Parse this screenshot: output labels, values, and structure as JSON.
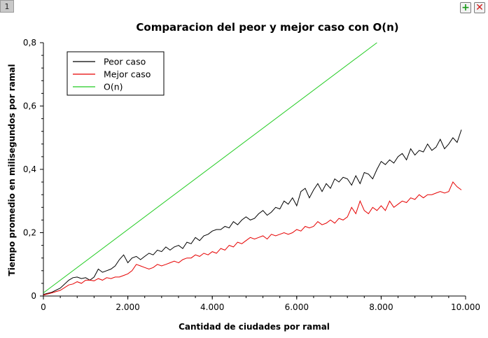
{
  "window": {
    "tab_label": "1",
    "add_icon": "plus-icon",
    "close_icon": "close-icon"
  },
  "chart_data": {
    "type": "line",
    "title": "Comparacion del peor y mejor caso con O(n)",
    "xlabel": "Cantidad de ciudades por ramal",
    "ylabel": "Tiempo promedio en milisegundos por ramal",
    "xlim": [
      0,
      10000
    ],
    "ylim": [
      0,
      0.8
    ],
    "x_ticks": [
      0,
      2000,
      4000,
      6000,
      8000,
      10000
    ],
    "x_tick_labels": [
      "0",
      "2.000",
      "4.000",
      "6.000",
      "8.000",
      "10.000"
    ],
    "y_ticks": [
      0,
      0.2,
      0.4,
      0.6,
      0.8
    ],
    "y_tick_labels": [
      "0",
      "0,2",
      "0,4",
      "0,6",
      "0,8"
    ],
    "legend_position": "top-left",
    "grid": false,
    "series": [
      {
        "name": "Peor caso",
        "color": "#000000",
        "x": [
          0,
          200,
          400,
          600,
          700,
          800,
          900,
          1000,
          1100,
          1200,
          1300,
          1400,
          1500,
          1600,
          1700,
          1800,
          1900,
          2000,
          2100,
          2200,
          2300,
          2400,
          2500,
          2600,
          2700,
          2800,
          2900,
          3000,
          3100,
          3200,
          3300,
          3400,
          3500,
          3600,
          3700,
          3800,
          3900,
          4000,
          4100,
          4200,
          4300,
          4400,
          4500,
          4600,
          4700,
          4800,
          4900,
          5000,
          5100,
          5200,
          5300,
          5400,
          5500,
          5600,
          5700,
          5800,
          5900,
          6000,
          6100,
          6200,
          6300,
          6400,
          6500,
          6600,
          6700,
          6800,
          6900,
          7000,
          7100,
          7200,
          7300,
          7400,
          7500,
          7600,
          7700,
          7800,
          7900,
          8000,
          8100,
          8200,
          8300,
          8400,
          8500,
          8600,
          8700,
          8800,
          8900,
          9000,
          9100,
          9200,
          9300,
          9400,
          9500,
          9600,
          9700,
          9800,
          9900
        ],
        "y": [
          0.005,
          0.012,
          0.025,
          0.05,
          0.058,
          0.06,
          0.055,
          0.058,
          0.05,
          0.06,
          0.085,
          0.075,
          0.08,
          0.085,
          0.095,
          0.115,
          0.13,
          0.105,
          0.12,
          0.125,
          0.115,
          0.125,
          0.135,
          0.13,
          0.145,
          0.14,
          0.155,
          0.145,
          0.155,
          0.16,
          0.15,
          0.17,
          0.165,
          0.185,
          0.175,
          0.19,
          0.195,
          0.205,
          0.21,
          0.21,
          0.22,
          0.215,
          0.235,
          0.225,
          0.24,
          0.25,
          0.24,
          0.245,
          0.26,
          0.27,
          0.255,
          0.265,
          0.28,
          0.275,
          0.3,
          0.29,
          0.31,
          0.285,
          0.33,
          0.34,
          0.31,
          0.335,
          0.355,
          0.33,
          0.355,
          0.34,
          0.37,
          0.36,
          0.375,
          0.37,
          0.35,
          0.38,
          0.355,
          0.39,
          0.385,
          0.37,
          0.4,
          0.425,
          0.415,
          0.43,
          0.42,
          0.44,
          0.45,
          0.43,
          0.465,
          0.445,
          0.46,
          0.455,
          0.48,
          0.46,
          0.47,
          0.495,
          0.465,
          0.48,
          0.5,
          0.485,
          0.525
        ]
      },
      {
        "name": "Mejor caso",
        "color": "#e60000",
        "x": [
          0,
          200,
          400,
          600,
          700,
          800,
          900,
          1000,
          1100,
          1200,
          1300,
          1400,
          1500,
          1600,
          1700,
          1800,
          1900,
          2000,
          2100,
          2200,
          2300,
          2400,
          2500,
          2600,
          2700,
          2800,
          2900,
          3000,
          3100,
          3200,
          3300,
          3400,
          3500,
          3600,
          3700,
          3800,
          3900,
          4000,
          4100,
          4200,
          4300,
          4400,
          4500,
          4600,
          4700,
          4800,
          4900,
          5000,
          5100,
          5200,
          5300,
          5400,
          5500,
          5600,
          5700,
          5800,
          5900,
          6000,
          6100,
          6200,
          6300,
          6400,
          6500,
          6600,
          6700,
          6800,
          6900,
          7000,
          7100,
          7200,
          7300,
          7400,
          7500,
          7600,
          7700,
          7800,
          7900,
          8000,
          8100,
          8200,
          8300,
          8400,
          8500,
          8600,
          8700,
          8800,
          8900,
          9000,
          9100,
          9200,
          9300,
          9400,
          9500,
          9600,
          9700,
          9800,
          9900
        ],
        "y": [
          0.003,
          0.01,
          0.018,
          0.035,
          0.038,
          0.045,
          0.04,
          0.05,
          0.05,
          0.048,
          0.055,
          0.05,
          0.058,
          0.055,
          0.06,
          0.06,
          0.065,
          0.07,
          0.08,
          0.1,
          0.095,
          0.09,
          0.085,
          0.09,
          0.1,
          0.095,
          0.1,
          0.105,
          0.11,
          0.105,
          0.115,
          0.12,
          0.12,
          0.13,
          0.125,
          0.135,
          0.13,
          0.14,
          0.135,
          0.15,
          0.145,
          0.16,
          0.155,
          0.17,
          0.165,
          0.175,
          0.185,
          0.18,
          0.185,
          0.19,
          0.18,
          0.195,
          0.19,
          0.195,
          0.2,
          0.195,
          0.2,
          0.21,
          0.205,
          0.22,
          0.215,
          0.22,
          0.235,
          0.225,
          0.23,
          0.24,
          0.23,
          0.245,
          0.24,
          0.25,
          0.28,
          0.26,
          0.3,
          0.27,
          0.26,
          0.28,
          0.27,
          0.285,
          0.27,
          0.3,
          0.28,
          0.29,
          0.3,
          0.295,
          0.31,
          0.305,
          0.32,
          0.31,
          0.32,
          0.32,
          0.325,
          0.33,
          0.325,
          0.33,
          0.36,
          0.345,
          0.335
        ]
      },
      {
        "name": "O(n)",
        "color": "#22cc22",
        "x": [
          0,
          7900
        ],
        "y": [
          0.01,
          0.8
        ]
      }
    ]
  }
}
